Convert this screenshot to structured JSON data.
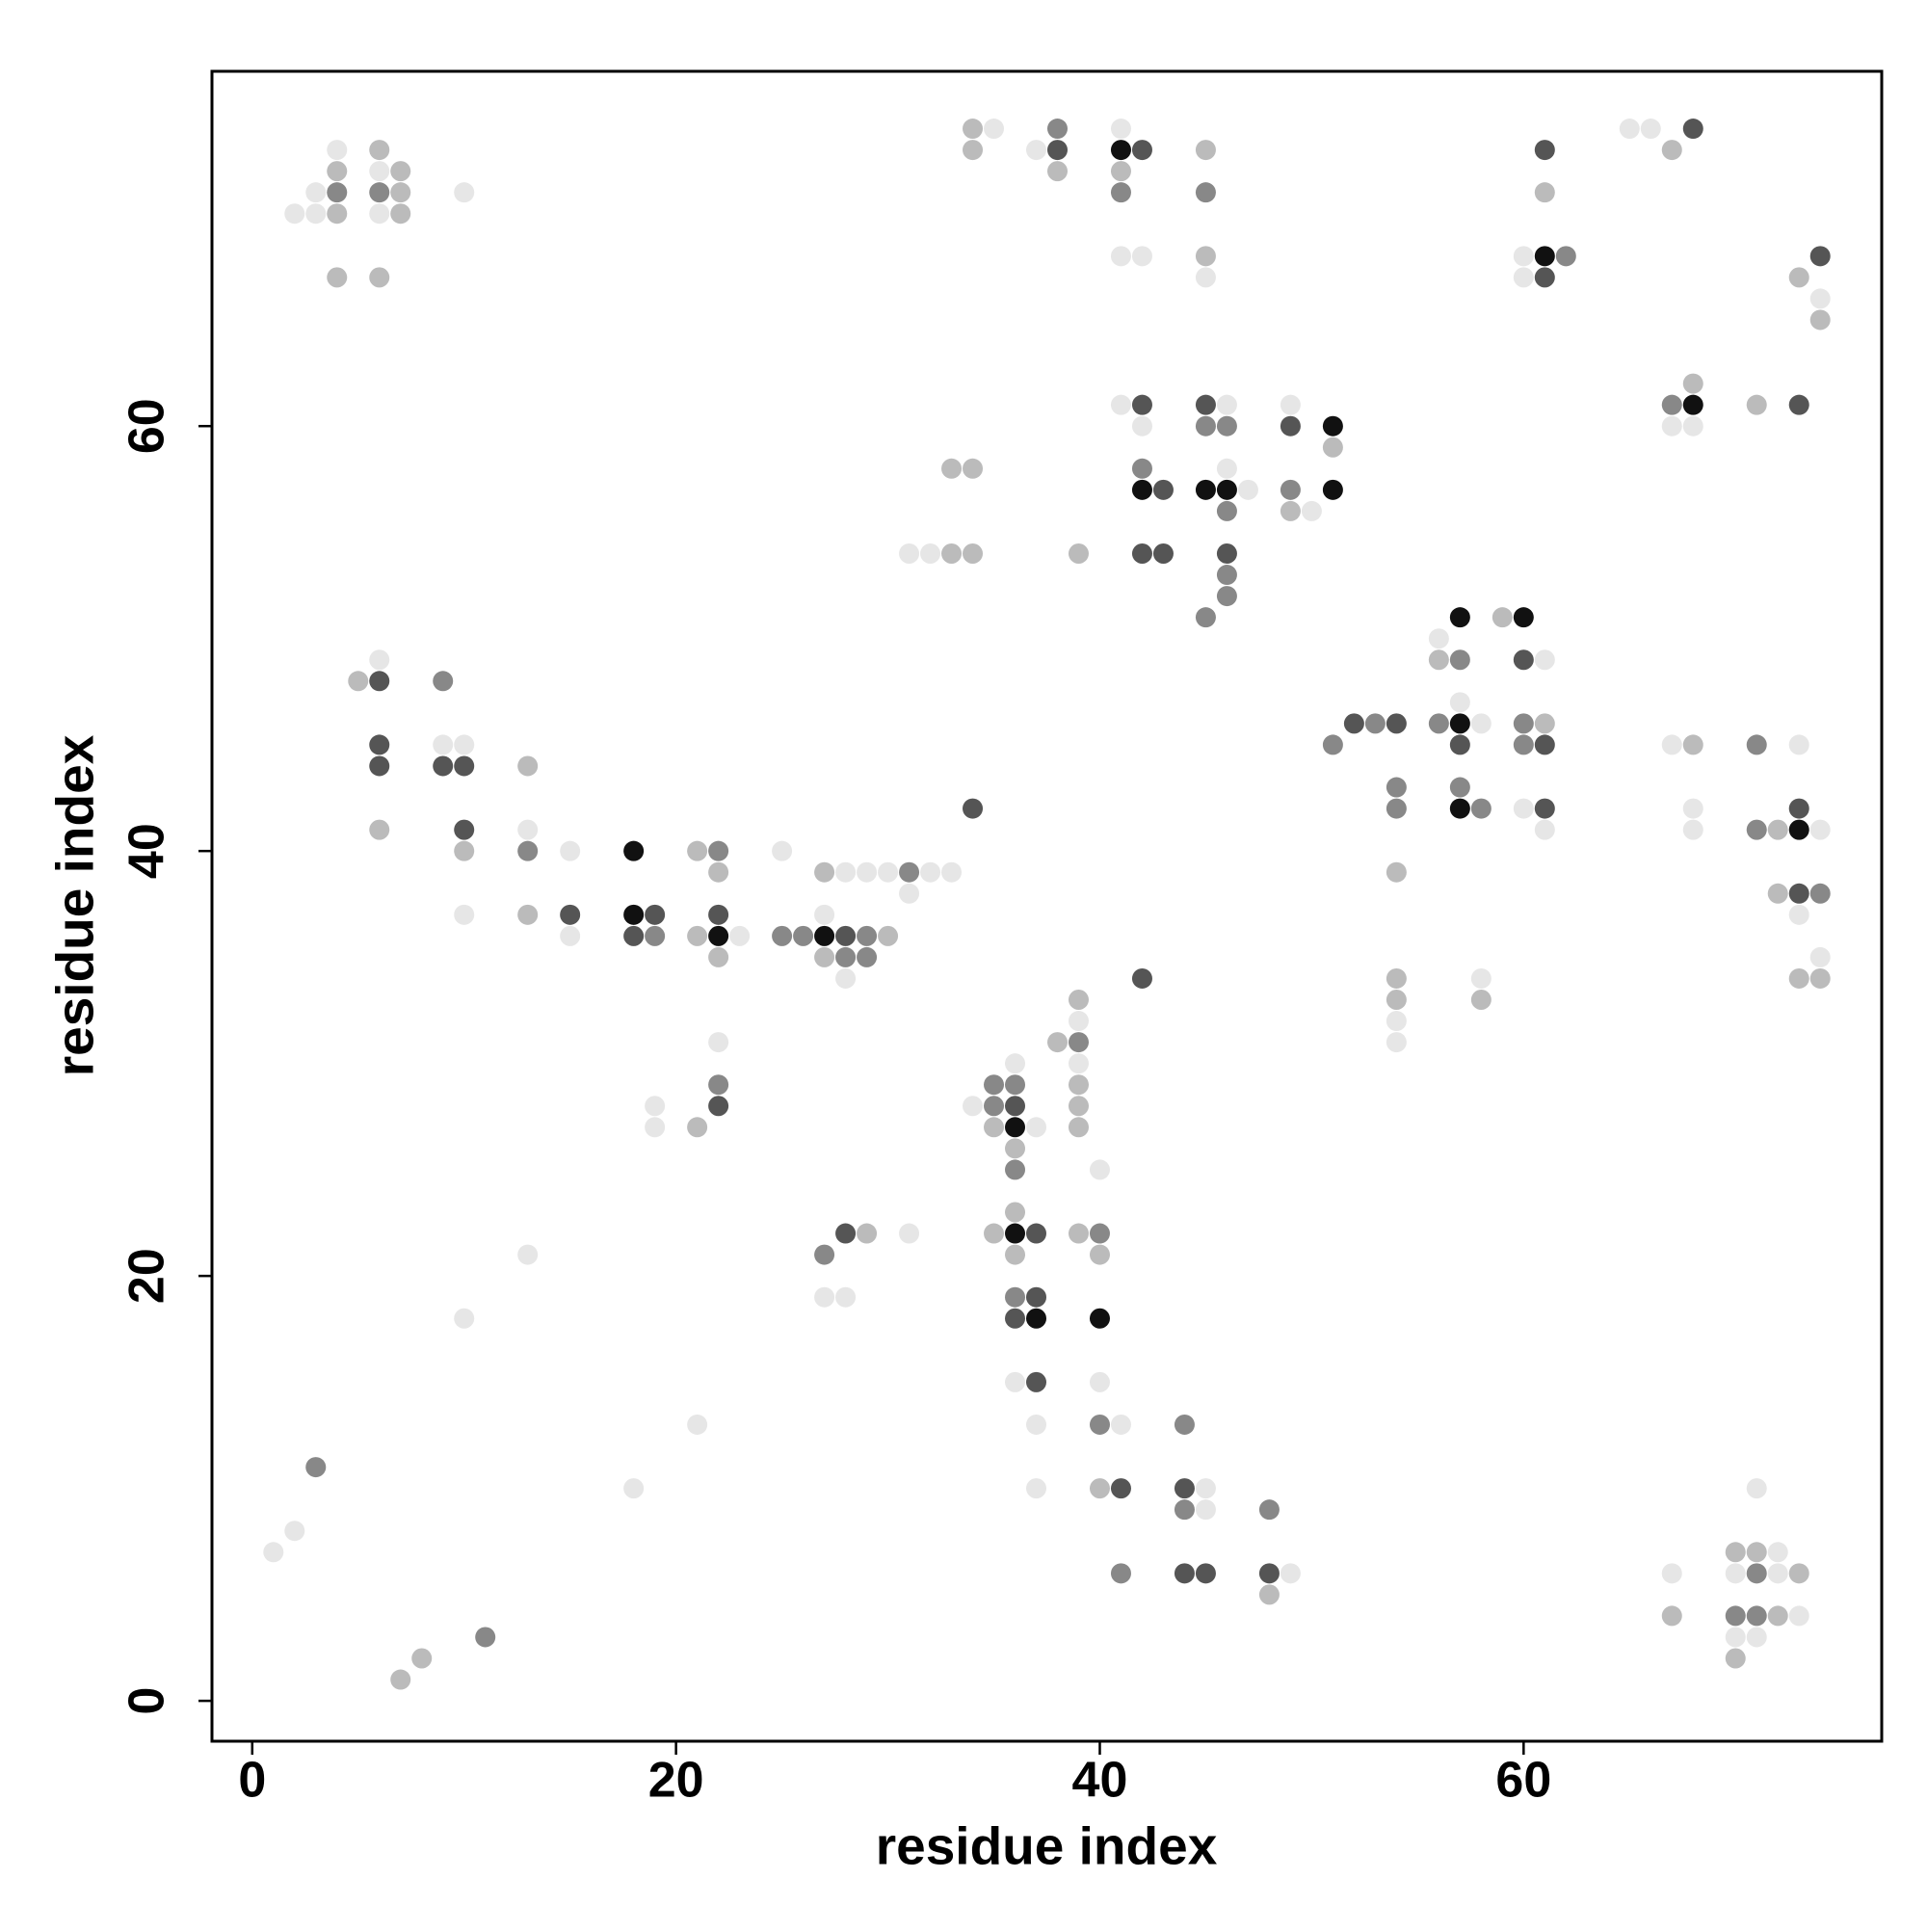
{
  "chart_data": {
    "type": "scatter",
    "x_label": "residue index",
    "y_label": "residue index",
    "xlim": [
      -1.9,
      76.9
    ],
    "ylim": [
      -1.9,
      76.7
    ],
    "xticks": [
      0,
      20,
      40,
      60
    ],
    "yticks": [
      0,
      20,
      40,
      60
    ],
    "grid": false,
    "series": [
      {
        "color": "#e6e6e6",
        "x": [
          35,
          41,
          65,
          66,
          4,
          37,
          6,
          3,
          10,
          2,
          3,
          6,
          41,
          42,
          60,
          45,
          60,
          74,
          41,
          46,
          49,
          42,
          67,
          68,
          46,
          47,
          50,
          31,
          32,
          56,
          6,
          61,
          57,
          58,
          9,
          10,
          67,
          73,
          60,
          68,
          13,
          61,
          68,
          74,
          15,
          25,
          28,
          29,
          30,
          32,
          33,
          31,
          10,
          27,
          73,
          15,
          23,
          74,
          28,
          58,
          39,
          54,
          22,
          54,
          36,
          39,
          19,
          34,
          19,
          37,
          40,
          31,
          13,
          27,
          28,
          10,
          36,
          40,
          21,
          37,
          41,
          18,
          37,
          45,
          71,
          45,
          2,
          1,
          72,
          49,
          67,
          70,
          72,
          73,
          70,
          71
        ],
        "y": [
          74,
          74,
          74,
          74,
          73,
          73,
          72,
          71,
          71,
          70,
          70,
          70,
          68,
          68,
          68,
          67,
          67,
          66,
          61,
          61,
          61,
          60,
          60,
          60,
          58,
          57,
          56,
          54,
          54,
          50,
          49,
          49,
          47,
          46,
          45,
          45,
          45,
          45,
          42,
          42,
          41,
          41,
          41,
          41,
          40,
          40,
          39,
          39,
          39,
          39,
          39,
          38,
          37,
          37,
          37,
          36,
          36,
          35,
          34,
          34,
          32,
          32,
          31,
          31,
          30,
          30,
          28,
          28,
          27,
          27,
          25,
          22,
          21,
          19,
          19,
          18,
          15,
          15,
          13,
          13,
          13,
          10,
          10,
          10,
          10,
          9,
          8,
          7,
          7,
          6,
          6,
          6,
          6,
          4,
          3,
          3
        ]
      },
      {
        "color": "#bbbbbb",
        "x": [
          34,
          6,
          34,
          45,
          67,
          4,
          7,
          38,
          41,
          7,
          61,
          4,
          7,
          45,
          4,
          6,
          73,
          74,
          68,
          71,
          51,
          33,
          34,
          49,
          33,
          34,
          39,
          59,
          56,
          5,
          61,
          68,
          13,
          6,
          72,
          10,
          21,
          22,
          27,
          54,
          72,
          13,
          21,
          30,
          22,
          27,
          54,
          73,
          74,
          39,
          54,
          58,
          38,
          39,
          39,
          21,
          35,
          39,
          36,
          36,
          29,
          35,
          39,
          36,
          40,
          40,
          70,
          71,
          73,
          48,
          67,
          72,
          8,
          70,
          7
        ],
        "y": [
          74,
          73,
          73,
          73,
          73,
          72,
          72,
          72,
          72,
          71,
          71,
          70,
          70,
          68,
          67,
          67,
          67,
          65,
          62,
          61,
          59,
          58,
          58,
          56,
          54,
          54,
          54,
          51,
          49,
          48,
          46,
          45,
          44,
          41,
          41,
          40,
          40,
          39,
          39,
          39,
          38,
          37,
          36,
          36,
          35,
          35,
          34,
          34,
          34,
          33,
          33,
          33,
          31,
          29,
          28,
          27,
          27,
          27,
          26,
          23,
          22,
          22,
          22,
          21,
          21,
          10,
          7,
          7,
          6,
          5,
          4,
          4,
          2,
          2,
          1
        ]
      },
      {
        "color": "#888888",
        "x": [
          38,
          4,
          6,
          41,
          45,
          62,
          67,
          45,
          46,
          42,
          49,
          46,
          46,
          46,
          45,
          57,
          9,
          53,
          56,
          60,
          51,
          60,
          71,
          54,
          57,
          54,
          58,
          71,
          13,
          22,
          31,
          74,
          19,
          25,
          26,
          29,
          28,
          29,
          39,
          22,
          35,
          36,
          35,
          36,
          40,
          27,
          36,
          40,
          44,
          3,
          44,
          48,
          41,
          71,
          70,
          71,
          11
        ],
        "y": [
          74,
          71,
          71,
          71,
          71,
          68,
          61,
          60,
          60,
          58,
          57,
          56,
          53,
          52,
          51,
          49,
          48,
          46,
          46,
          46,
          45,
          45,
          45,
          43,
          43,
          42,
          42,
          41,
          40,
          40,
          39,
          38,
          36,
          36,
          36,
          36,
          35,
          35,
          31,
          29,
          29,
          29,
          28,
          25,
          22,
          21,
          19,
          13,
          13,
          11,
          9,
          9,
          6,
          6,
          4,
          4,
          3
        ]
      },
      {
        "color": "#555555",
        "x": [
          68,
          38,
          42,
          61,
          74,
          61,
          42,
          45,
          73,
          49,
          43,
          42,
          43,
          46,
          60,
          6,
          52,
          54,
          6,
          57,
          61,
          6,
          9,
          10,
          34,
          61,
          73,
          10,
          73,
          15,
          19,
          22,
          18,
          28,
          42,
          22,
          36,
          28,
          37,
          37,
          36,
          37,
          41,
          44,
          44,
          45,
          48
        ],
        "y": [
          74,
          73,
          73,
          73,
          68,
          67,
          61,
          61,
          61,
          60,
          57,
          54,
          54,
          54,
          49,
          48,
          46,
          46,
          45,
          45,
          45,
          44,
          44,
          44,
          42,
          42,
          42,
          41,
          38,
          37,
          37,
          37,
          36,
          36,
          34,
          28,
          28,
          22,
          22,
          19,
          18,
          15,
          10,
          10,
          6,
          6,
          6
        ]
      },
      {
        "color": "#111111",
        "x": [
          41,
          61,
          68,
          51,
          42,
          45,
          46,
          51,
          57,
          60,
          57,
          57,
          73,
          18,
          18,
          22,
          27,
          36,
          36,
          37,
          40
        ],
        "y": [
          73,
          68,
          61,
          60,
          57,
          57,
          57,
          57,
          51,
          51,
          46,
          42,
          41,
          40,
          37,
          36,
          36,
          27,
          22,
          18,
          18
        ]
      }
    ]
  }
}
